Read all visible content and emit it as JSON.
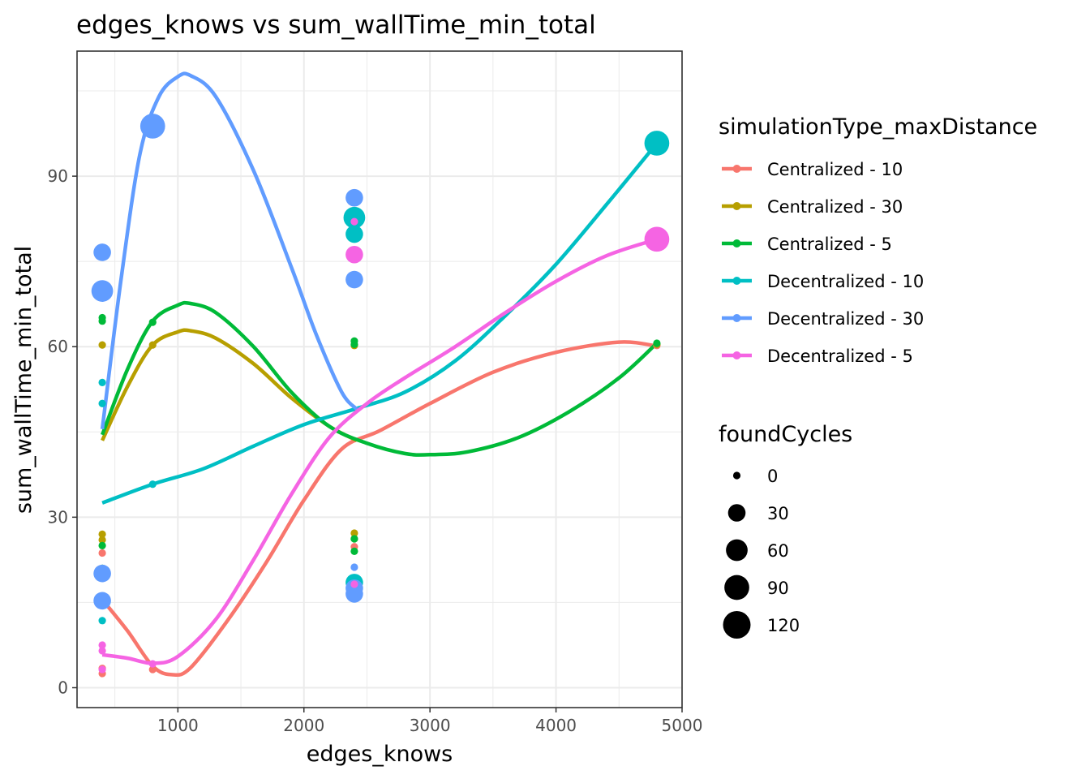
{
  "chart_data": {
    "type": "scatter",
    "title": "edges_knows  vs  sum_wallTime_min_total",
    "xlabel": "edges_knows",
    "ylabel": "sum_wallTime_min_total",
    "xlim": [
      200,
      5000
    ],
    "ylim": [
      -3.5,
      112
    ],
    "x_ticks": [
      1000,
      2000,
      3000,
      4000,
      5000
    ],
    "y_ticks": [
      0,
      30,
      60,
      90
    ],
    "grid": true,
    "legend_position": "right",
    "color_legend": {
      "title": "simulationType_maxDistance",
      "entries": [
        {
          "label": "Centralized - 10",
          "color": "#F8766D"
        },
        {
          "label": "Centralized - 30",
          "color": "#B79F00"
        },
        {
          "label": "Centralized - 5",
          "color": "#00BA38"
        },
        {
          "label": "Decentralized - 10",
          "color": "#00BFC4"
        },
        {
          "label": "Decentralized - 30",
          "color": "#619CFF"
        },
        {
          "label": "Decentralized - 5",
          "color": "#F564E3"
        }
      ]
    },
    "size_legend": {
      "title": "foundCycles",
      "entries": [
        "0",
        "30",
        "60",
        "90",
        "120"
      ],
      "values": [
        0,
        30,
        60,
        90,
        120
      ]
    },
    "series": [
      {
        "name": "Centralized - 10",
        "color": "#F8766D",
        "points": [
          [
            400,
            2.5,
            0
          ],
          [
            400,
            3.4,
            0
          ],
          [
            400,
            23.7,
            0
          ],
          [
            800,
            3.2,
            0
          ],
          [
            2400,
            24.8,
            0
          ],
          [
            4800,
            60.2,
            0
          ]
        ],
        "smooth": [
          [
            400,
            15.5
          ],
          [
            600,
            10
          ],
          [
            800,
            3.8
          ],
          [
            950,
            2.3
          ],
          [
            1100,
            3.5
          ],
          [
            1400,
            12
          ],
          [
            1700,
            22
          ],
          [
            2000,
            33
          ],
          [
            2300,
            42
          ],
          [
            2600,
            45.2
          ],
          [
            3000,
            50
          ],
          [
            3500,
            55.5
          ],
          [
            4000,
            59
          ],
          [
            4500,
            60.8
          ],
          [
            4800,
            60.1
          ]
        ]
      },
      {
        "name": "Centralized - 30",
        "color": "#B79F00",
        "points": [
          [
            400,
            27,
            0
          ],
          [
            400,
            26,
            0
          ],
          [
            400,
            60.3,
            0
          ],
          [
            800,
            60.3,
            0
          ],
          [
            2400,
            27.2,
            0
          ],
          [
            2400,
            26.2,
            0
          ],
          [
            2400,
            60.2,
            0
          ],
          [
            4800,
            60.4,
            0
          ]
        ],
        "smooth": [
          [
            400,
            43.5
          ],
          [
            600,
            53
          ],
          [
            800,
            60.3
          ],
          [
            1000,
            62.6
          ],
          [
            1100,
            62.8
          ],
          [
            1300,
            61.5
          ],
          [
            1600,
            57
          ],
          [
            1900,
            51
          ],
          [
            2200,
            46
          ],
          [
            2420,
            43.5
          ]
        ]
      },
      {
        "name": "Centralized - 5",
        "color": "#00BA38",
        "points": [
          [
            400,
            21,
            0
          ],
          [
            400,
            25,
            0
          ],
          [
            400,
            64.5,
            0
          ],
          [
            400,
            65.1,
            0
          ],
          [
            800,
            64.3,
            0
          ],
          [
            2400,
            24,
            0
          ],
          [
            2400,
            26.2,
            0
          ],
          [
            2400,
            60.4,
            0
          ],
          [
            2400,
            61,
            0
          ],
          [
            4800,
            60.6,
            0
          ]
        ],
        "smooth": [
          [
            400,
            44.5
          ],
          [
            600,
            56
          ],
          [
            800,
            64.5
          ],
          [
            1000,
            67.3
          ],
          [
            1100,
            67.6
          ],
          [
            1300,
            66
          ],
          [
            1600,
            60
          ],
          [
            1900,
            52
          ],
          [
            2200,
            46
          ],
          [
            2500,
            43
          ],
          [
            2800,
            41.2
          ],
          [
            3000,
            41
          ],
          [
            3300,
            41.5
          ],
          [
            3700,
            44
          ],
          [
            4100,
            48.5
          ],
          [
            4500,
            54.5
          ],
          [
            4800,
            60.6
          ]
        ]
      },
      {
        "name": "Decentralized - 10",
        "color": "#00BFC4",
        "points": [
          [
            400,
            11.8,
            0
          ],
          [
            400,
            50,
            0
          ],
          [
            400,
            53.7,
            0
          ],
          [
            800,
            35.8,
            0
          ],
          [
            2400,
            18.5,
            30
          ],
          [
            2400,
            79.8,
            30
          ],
          [
            2400,
            82.7,
            60
          ],
          [
            4800,
            95.8,
            90
          ]
        ],
        "smooth": [
          [
            400,
            32.5
          ],
          [
            800,
            35.8
          ],
          [
            1200,
            38.5
          ],
          [
            1600,
            42.5
          ],
          [
            2000,
            46.3
          ],
          [
            2400,
            49
          ],
          [
            2800,
            52
          ],
          [
            3200,
            57.5
          ],
          [
            3600,
            65.5
          ],
          [
            4000,
            74.5
          ],
          [
            4400,
            85
          ],
          [
            4800,
            95.8
          ]
        ]
      },
      {
        "name": "Decentralized - 30",
        "color": "#619CFF",
        "points": [
          [
            400,
            15.3,
            30
          ],
          [
            400,
            20.1,
            30
          ],
          [
            400,
            69.8,
            60
          ],
          [
            400,
            76.6,
            30
          ],
          [
            800,
            98.8,
            90
          ],
          [
            2400,
            16.5,
            30
          ],
          [
            2400,
            17.5,
            30
          ],
          [
            2400,
            21.2,
            0
          ],
          [
            2400,
            71.8,
            30
          ],
          [
            2400,
            86.2,
            30
          ]
        ],
        "smooth": [
          [
            400,
            45.5
          ],
          [
            550,
            72
          ],
          [
            700,
            94
          ],
          [
            850,
            104
          ],
          [
            1000,
            107.5
          ],
          [
            1100,
            107.7
          ],
          [
            1300,
            104
          ],
          [
            1600,
            91
          ],
          [
            1900,
            74
          ],
          [
            2100,
            62
          ],
          [
            2300,
            52
          ],
          [
            2420,
            49
          ]
        ]
      },
      {
        "name": "Decentralized - 5",
        "color": "#F564E3",
        "points": [
          [
            400,
            3.2,
            0
          ],
          [
            400,
            6.5,
            0
          ],
          [
            400,
            7.5,
            0
          ],
          [
            800,
            4.2,
            0
          ],
          [
            2400,
            18.2,
            0
          ],
          [
            2400,
            76.2,
            30
          ],
          [
            2400,
            82,
            0
          ],
          [
            4800,
            78.9,
            90
          ]
        ],
        "smooth": [
          [
            400,
            5.8
          ],
          [
            600,
            5.2
          ],
          [
            800,
            4.3
          ],
          [
            1000,
            5.5
          ],
          [
            1300,
            12
          ],
          [
            1600,
            22.5
          ],
          [
            1900,
            34
          ],
          [
            2200,
            44
          ],
          [
            2500,
            50
          ],
          [
            2800,
            54.5
          ],
          [
            3200,
            60
          ],
          [
            3600,
            66
          ],
          [
            4000,
            71.5
          ],
          [
            4400,
            76
          ],
          [
            4800,
            78.9
          ]
        ]
      }
    ]
  }
}
